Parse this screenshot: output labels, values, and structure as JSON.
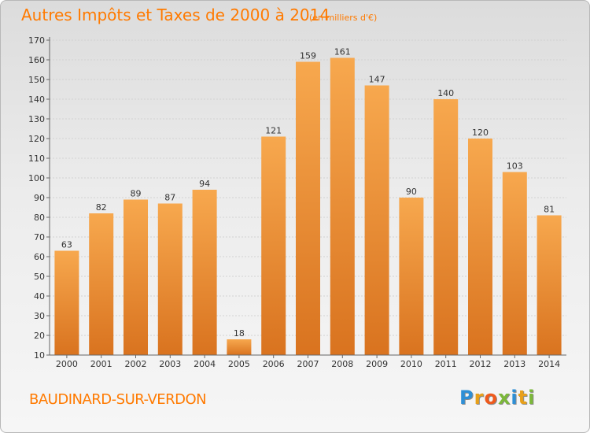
{
  "title": "Autres Impôts et Taxes de 2000 à 2014",
  "subtitle": "(en milliers d'€)",
  "location": "BAUDINARD-SUR-VERDON",
  "logo": {
    "text": "Proxiti",
    "letters": [
      "P",
      "r",
      "o",
      "x",
      "i",
      "t",
      "i"
    ],
    "colors": [
      "#2e8fd6",
      "#e8a01a",
      "#ef5a1c",
      "#7cb83a",
      "#2e8fd6",
      "#e8a01a",
      "#7cb83a"
    ]
  },
  "colors": {
    "accent": "#ff7a00",
    "bar_top": "#f7a84e",
    "bar_bottom": "#d9731f"
  },
  "chart_data": {
    "type": "bar",
    "title": "Autres Impôts et Taxes de 2000 à 2014",
    "subtitle": "(en milliers d'€)",
    "xlabel": "",
    "ylabel": "",
    "categories": [
      "2000",
      "2001",
      "2002",
      "2003",
      "2004",
      "2005",
      "2006",
      "2007",
      "2008",
      "2009",
      "2010",
      "2011",
      "2012",
      "2013",
      "2014"
    ],
    "values": [
      63,
      82,
      89,
      87,
      94,
      18,
      121,
      159,
      161,
      147,
      90,
      140,
      120,
      103,
      81
    ],
    "ylim": [
      10,
      170
    ],
    "yticks": [
      10,
      20,
      30,
      40,
      50,
      60,
      70,
      80,
      90,
      100,
      110,
      120,
      130,
      140,
      150,
      160,
      170
    ],
    "grid": true,
    "data_labels": true
  }
}
